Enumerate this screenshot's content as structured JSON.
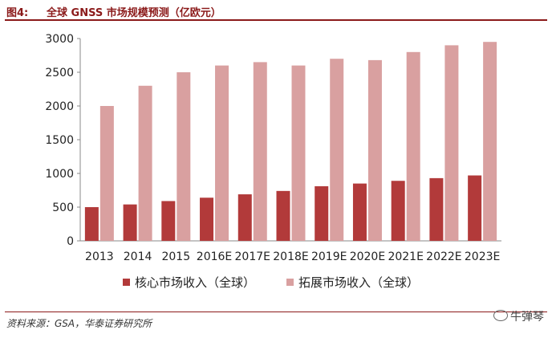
{
  "header": {
    "fig_label": "图4:",
    "title": "全球 GNSS 市场规模预测（亿欧元）"
  },
  "footer": {
    "source": "资料来源：GSA，华泰证券研究所"
  },
  "watermark": {
    "text": "牛弹琴",
    "icon": "wechat-icon"
  },
  "colors": {
    "accent": "#8b1a1a",
    "core": "#b23a3a",
    "extended": "#d9a0a0"
  },
  "chart_data": {
    "type": "bar",
    "categories": [
      "2013",
      "2014",
      "2015",
      "2016E",
      "2017E",
      "2018E",
      "2019E",
      "2020E",
      "2021E",
      "2022E",
      "2023E"
    ],
    "series": [
      {
        "name": "核心市场收入（全球）",
        "values": [
          500,
          540,
          590,
          640,
          690,
          740,
          810,
          850,
          890,
          930,
          970
        ]
      },
      {
        "name": "拓展市场收入（全球）",
        "values": [
          2000,
          2300,
          2500,
          2600,
          2650,
          2600,
          2700,
          2680,
          2800,
          2900,
          2950
        ]
      }
    ],
    "ylim": [
      0,
      3000
    ],
    "yticks": [
      0,
      500,
      1000,
      1500,
      2000,
      2500,
      3000
    ],
    "grid": false,
    "legend": "bottom"
  }
}
